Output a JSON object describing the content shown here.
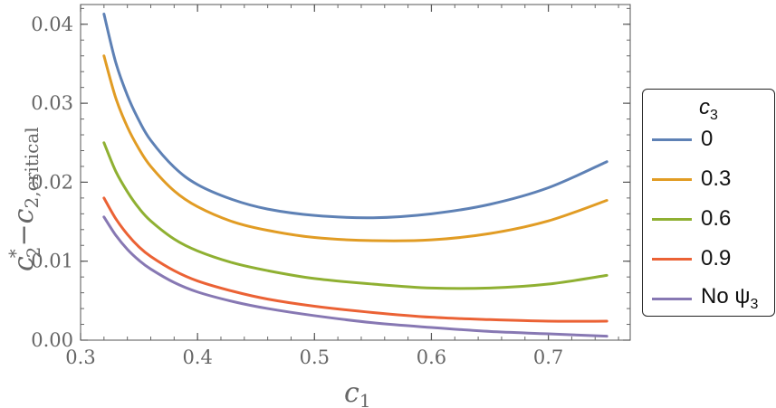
{
  "chart_data": {
    "type": "line",
    "title": "",
    "xlim": [
      0.3,
      0.77
    ],
    "ylim": [
      0.0,
      0.0425
    ],
    "xticks": [
      "0.3",
      "0.4",
      "0.5",
      "0.6",
      "0.7"
    ],
    "yticks": [
      "0.00",
      "0.01",
      "0.02",
      "0.03",
      "0.04"
    ],
    "xlabel": {
      "main": "c",
      "sub": "1"
    },
    "ylabel": {
      "c": "c",
      "sub": "2",
      "sup": "*",
      "minus": "−",
      "c2": "c",
      "sub2": "2,critical"
    },
    "legend": {
      "title_main": "c",
      "title_sub": "3",
      "placement": "right"
    },
    "series": [
      {
        "name": "0",
        "color": "#5e81b5",
        "x": [
          0.32,
          0.33,
          0.34,
          0.35,
          0.36,
          0.38,
          0.4,
          0.43,
          0.46,
          0.5,
          0.55,
          0.6,
          0.65,
          0.7,
          0.75
        ],
        "y": [
          0.0413,
          0.0352,
          0.031,
          0.0278,
          0.0253,
          0.0219,
          0.0197,
          0.0178,
          0.0166,
          0.0158,
          0.0155,
          0.016,
          0.0172,
          0.0193,
          0.0226
        ]
      },
      {
        "name": "0.3",
        "color": "#e19c24",
        "x": [
          0.32,
          0.33,
          0.34,
          0.35,
          0.36,
          0.38,
          0.4,
          0.43,
          0.46,
          0.5,
          0.55,
          0.6,
          0.65,
          0.7,
          0.75
        ],
        "y": [
          0.036,
          0.0307,
          0.027,
          0.0242,
          0.022,
          0.0189,
          0.0169,
          0.015,
          0.0139,
          0.013,
          0.0126,
          0.0127,
          0.0135,
          0.0151,
          0.0177
        ]
      },
      {
        "name": "0.6",
        "color": "#8fb032",
        "x": [
          0.32,
          0.33,
          0.34,
          0.35,
          0.36,
          0.38,
          0.4,
          0.43,
          0.46,
          0.5,
          0.55,
          0.6,
          0.65,
          0.7,
          0.75
        ],
        "y": [
          0.025,
          0.0214,
          0.0188,
          0.0167,
          0.0151,
          0.0128,
          0.0113,
          0.0098,
          0.0088,
          0.0078,
          0.0071,
          0.0066,
          0.0066,
          0.0071,
          0.0082
        ]
      },
      {
        "name": "0.9",
        "color": "#eb6235",
        "x": [
          0.32,
          0.33,
          0.34,
          0.35,
          0.36,
          0.38,
          0.4,
          0.43,
          0.46,
          0.5,
          0.55,
          0.6,
          0.65,
          0.7,
          0.75
        ],
        "y": [
          0.018,
          0.0154,
          0.0134,
          0.0118,
          0.0106,
          0.0088,
          0.0075,
          0.0062,
          0.0052,
          0.0043,
          0.0035,
          0.0029,
          0.0026,
          0.0024,
          0.0024
        ]
      },
      {
        "name": "No ψ",
        "name_sub": "3",
        "color": "#8778b3",
        "x": [
          0.32,
          0.33,
          0.34,
          0.35,
          0.36,
          0.38,
          0.4,
          0.43,
          0.46,
          0.5,
          0.55,
          0.6,
          0.65,
          0.7,
          0.75
        ],
        "y": [
          0.0156,
          0.0133,
          0.0115,
          0.0101,
          0.009,
          0.0073,
          0.0061,
          0.0049,
          0.004,
          0.0031,
          0.0022,
          0.0016,
          0.0011,
          0.0008,
          0.0005
        ]
      }
    ]
  }
}
